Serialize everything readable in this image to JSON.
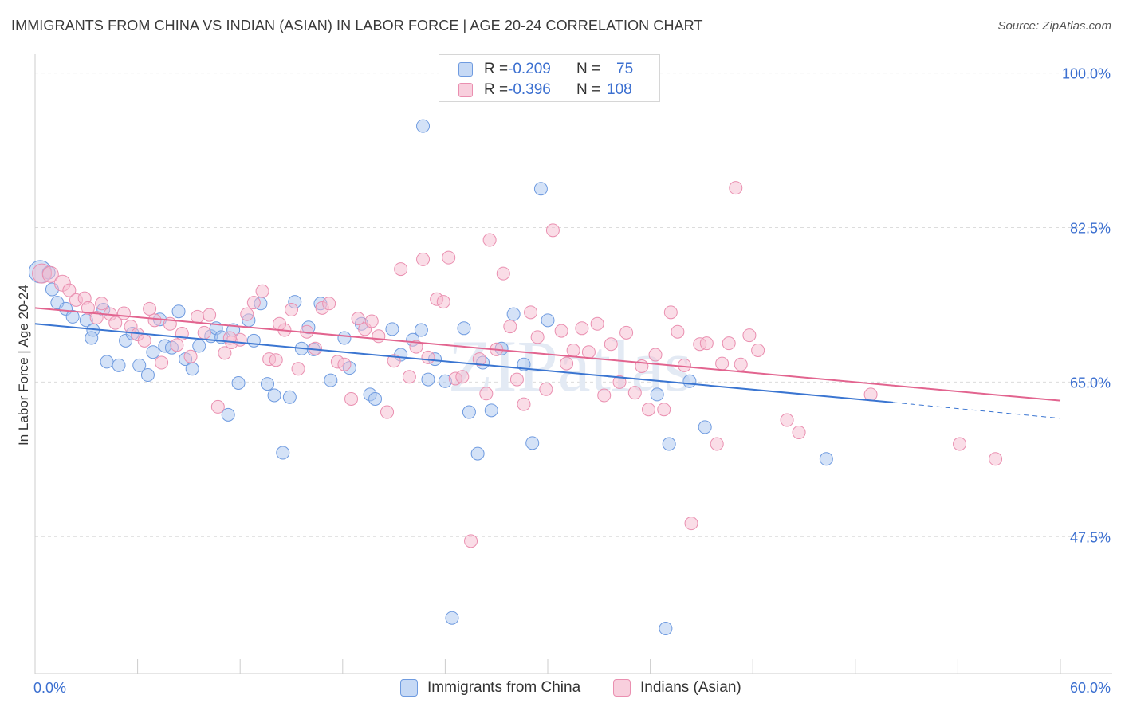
{
  "title": "IMMIGRANTS FROM CHINA VS INDIAN (ASIAN) IN LABOR FORCE | AGE 20-24 CORRELATION CHART",
  "source": "Source: ZipAtlas.com",
  "watermark": "ZIPatlas",
  "legend_stats": [
    {
      "r_label": "R =",
      "r_value": "-0.209",
      "n_label": "N =",
      "n_value": "75"
    },
    {
      "r_label": "R =",
      "r_value": "-0.396",
      "n_label": "N =",
      "n_value": "108"
    }
  ],
  "colors": {
    "china_fill": "#a9c6f0",
    "china_stroke": "#6f9be0",
    "china_line": "#3a75d1",
    "indian_fill": "#f6bcd0",
    "indian_stroke": "#ea8fb0",
    "indian_line": "#e2648f",
    "axis_text": "#3b6fd0"
  },
  "chart_data": {
    "type": "scatter",
    "title": "IMMIGRANTS FROM CHINA VS INDIAN (ASIAN) IN LABOR FORCE | AGE 20-24 CORRELATION CHART",
    "xlabel": "",
    "ylabel": "In Labor Force | Age 20-24",
    "xlim": [
      0,
      60
    ],
    "ylim": [
      32,
      101.5
    ],
    "x_tick_labels": [
      "0.0%",
      "60.0%"
    ],
    "y_ticks": [
      47.5,
      65.0,
      82.5,
      100.0
    ],
    "y_tick_labels": [
      "47.5%",
      "65.0%",
      "82.5%",
      "100.0%"
    ],
    "grid": true,
    "legend_position": "top-center",
    "series": [
      {
        "name": "Immigrants from China",
        "trend": {
          "x0": 0,
          "y0": 71.6,
          "x1": 50.2,
          "y1": 62.7,
          "dash_to_x": 60,
          "dash_to_y": 60.9
        },
        "points": [
          [
            0.3,
            77.5,
            14
          ],
          [
            0.8,
            77.4,
            8
          ],
          [
            1.0,
            75.5,
            8
          ],
          [
            1.3,
            74.0,
            8
          ],
          [
            1.8,
            73.3,
            8
          ],
          [
            2.2,
            72.4,
            8
          ],
          [
            3.0,
            72.0,
            8
          ],
          [
            3.4,
            70.9,
            8
          ],
          [
            4.0,
            73.2,
            8
          ],
          [
            3.3,
            70.0,
            8
          ],
          [
            4.2,
            67.3,
            8
          ],
          [
            4.9,
            66.9,
            8
          ],
          [
            5.3,
            69.7,
            8
          ],
          [
            5.7,
            70.5,
            8
          ],
          [
            6.1,
            66.9,
            8
          ],
          [
            6.6,
            65.8,
            8
          ],
          [
            6.9,
            68.4,
            8
          ],
          [
            7.3,
            72.1,
            8
          ],
          [
            7.6,
            69.1,
            8
          ],
          [
            8.0,
            68.9,
            8
          ],
          [
            8.4,
            73.0,
            8
          ],
          [
            8.8,
            67.6,
            8
          ],
          [
            9.2,
            66.5,
            8
          ],
          [
            9.6,
            69.1,
            8
          ],
          [
            10.3,
            70.2,
            8
          ],
          [
            10.6,
            71.1,
            8
          ],
          [
            10.9,
            70.1,
            8
          ],
          [
            11.3,
            61.3,
            8
          ],
          [
            11.6,
            70.9,
            8
          ],
          [
            11.9,
            64.9,
            8
          ],
          [
            12.5,
            72.0,
            8
          ],
          [
            12.8,
            69.7,
            8
          ],
          [
            13.2,
            73.9,
            8
          ],
          [
            13.6,
            64.8,
            8
          ],
          [
            14.0,
            63.5,
            8
          ],
          [
            14.5,
            57.0,
            8
          ],
          [
            14.9,
            63.3,
            8
          ],
          [
            15.2,
            74.1,
            8
          ],
          [
            15.6,
            68.8,
            8
          ],
          [
            16.0,
            71.2,
            8
          ],
          [
            16.3,
            68.7,
            8
          ],
          [
            16.7,
            73.9,
            8
          ],
          [
            17.3,
            65.2,
            8
          ],
          [
            18.1,
            70.0,
            8
          ],
          [
            18.4,
            66.6,
            8
          ],
          [
            19.1,
            71.6,
            8
          ],
          [
            19.6,
            63.6,
            8
          ],
          [
            19.9,
            63.1,
            8
          ],
          [
            20.9,
            71.0,
            8
          ],
          [
            21.4,
            68.1,
            8
          ],
          [
            22.1,
            69.8,
            8
          ],
          [
            22.6,
            70.9,
            8
          ],
          [
            23.0,
            65.3,
            8
          ],
          [
            23.4,
            67.6,
            8
          ],
          [
            24.0,
            65.1,
            8
          ],
          [
            24.4,
            38.3,
            8
          ],
          [
            25.1,
            71.1,
            8
          ],
          [
            25.4,
            61.6,
            8
          ],
          [
            25.9,
            56.9,
            8
          ],
          [
            26.2,
            67.2,
            8
          ],
          [
            26.7,
            61.8,
            8
          ],
          [
            27.3,
            68.8,
            8
          ],
          [
            28.0,
            72.7,
            8
          ],
          [
            28.6,
            67.0,
            8
          ],
          [
            29.1,
            58.1,
            8
          ],
          [
            29.6,
            86.9,
            8
          ],
          [
            30.0,
            72.0,
            8
          ],
          [
            32.9,
            100.0,
            8
          ],
          [
            22.7,
            94.0,
            8
          ],
          [
            36.4,
            63.6,
            8
          ],
          [
            36.9,
            37.1,
            8
          ],
          [
            37.1,
            58.0,
            8
          ],
          [
            38.3,
            65.1,
            8
          ],
          [
            39.2,
            59.9,
            8
          ],
          [
            46.3,
            56.3,
            8
          ]
        ]
      },
      {
        "name": "Indians (Asian)",
        "trend": {
          "x0": 0,
          "y0": 73.4,
          "x1": 60,
          "y1": 62.9
        },
        "points": [
          [
            0.4,
            77.3,
            12
          ],
          [
            0.9,
            77.2,
            10
          ],
          [
            1.6,
            76.2,
            10
          ],
          [
            2.0,
            75.4,
            8
          ],
          [
            2.4,
            74.3,
            8
          ],
          [
            2.9,
            74.5,
            8
          ],
          [
            3.1,
            73.4,
            8
          ],
          [
            3.6,
            72.3,
            8
          ],
          [
            3.9,
            73.9,
            8
          ],
          [
            4.4,
            72.7,
            8
          ],
          [
            4.7,
            71.7,
            8
          ],
          [
            5.2,
            72.8,
            8
          ],
          [
            5.6,
            71.3,
            8
          ],
          [
            6.0,
            70.4,
            8
          ],
          [
            6.4,
            69.7,
            8
          ],
          [
            6.7,
            73.3,
            8
          ],
          [
            7.0,
            72.0,
            8
          ],
          [
            7.4,
            67.2,
            8
          ],
          [
            7.9,
            71.6,
            8
          ],
          [
            8.3,
            69.2,
            8
          ],
          [
            8.6,
            70.5,
            8
          ],
          [
            9.1,
            67.9,
            8
          ],
          [
            9.5,
            72.4,
            8
          ],
          [
            9.9,
            70.6,
            8
          ],
          [
            10.2,
            72.6,
            8
          ],
          [
            10.7,
            62.2,
            8
          ],
          [
            11.1,
            68.3,
            8
          ],
          [
            11.5,
            69.5,
            8
          ],
          [
            12.0,
            69.8,
            8
          ],
          [
            12.4,
            72.7,
            8
          ],
          [
            12.8,
            74.0,
            8
          ],
          [
            13.3,
            75.3,
            8
          ],
          [
            13.7,
            67.6,
            8
          ],
          [
            14.1,
            67.5,
            8
          ],
          [
            14.6,
            70.9,
            8
          ],
          [
            15.0,
            73.2,
            8
          ],
          [
            15.4,
            66.5,
            8
          ],
          [
            15.9,
            70.7,
            8
          ],
          [
            16.4,
            68.8,
            8
          ],
          [
            16.8,
            73.4,
            8
          ],
          [
            17.2,
            73.9,
            8
          ],
          [
            17.7,
            67.3,
            8
          ],
          [
            18.1,
            67.0,
            8
          ],
          [
            18.5,
            63.1,
            8
          ],
          [
            18.9,
            72.2,
            8
          ],
          [
            19.3,
            71.0,
            8
          ],
          [
            19.7,
            71.9,
            8
          ],
          [
            20.1,
            70.2,
            8
          ],
          [
            20.6,
            61.6,
            8
          ],
          [
            21.0,
            67.4,
            8
          ],
          [
            21.4,
            77.8,
            8
          ],
          [
            21.9,
            65.6,
            8
          ],
          [
            22.3,
            69.0,
            8
          ],
          [
            22.7,
            78.9,
            8
          ],
          [
            23.0,
            67.8,
            8
          ],
          [
            23.5,
            74.4,
            8
          ],
          [
            23.9,
            74.1,
            8
          ],
          [
            24.2,
            79.1,
            8
          ],
          [
            24.6,
            65.4,
            8
          ],
          [
            25.0,
            65.6,
            8
          ],
          [
            25.5,
            47.0,
            8
          ],
          [
            26.0,
            67.6,
            8
          ],
          [
            26.4,
            63.7,
            8
          ],
          [
            26.6,
            81.1,
            8
          ],
          [
            27.0,
            68.7,
            8
          ],
          [
            27.4,
            77.3,
            8
          ],
          [
            27.8,
            71.3,
            8
          ],
          [
            28.2,
            65.3,
            8
          ],
          [
            28.6,
            62.5,
            8
          ],
          [
            29.0,
            72.9,
            8
          ],
          [
            29.4,
            70.1,
            8
          ],
          [
            29.9,
            64.2,
            8
          ],
          [
            30.3,
            82.2,
            8
          ],
          [
            30.8,
            70.8,
            8
          ],
          [
            31.1,
            67.1,
            8
          ],
          [
            31.5,
            68.6,
            8
          ],
          [
            32.0,
            71.1,
            8
          ],
          [
            32.4,
            68.4,
            8
          ],
          [
            32.9,
            71.6,
            8
          ],
          [
            33.3,
            63.5,
            8
          ],
          [
            33.7,
            69.3,
            8
          ],
          [
            34.2,
            65.0,
            8
          ],
          [
            34.6,
            70.6,
            8
          ],
          [
            35.1,
            63.8,
            8
          ],
          [
            35.5,
            66.8,
            8
          ],
          [
            35.9,
            61.9,
            8
          ],
          [
            36.3,
            68.1,
            8
          ],
          [
            36.8,
            61.9,
            8
          ],
          [
            37.2,
            72.9,
            8
          ],
          [
            37.6,
            70.7,
            8
          ],
          [
            38.0,
            66.9,
            8
          ],
          [
            38.4,
            49.0,
            8
          ],
          [
            38.9,
            69.3,
            8
          ],
          [
            39.3,
            69.4,
            8
          ],
          [
            39.9,
            58.0,
            8
          ],
          [
            40.2,
            67.1,
            8
          ],
          [
            40.6,
            69.4,
            8
          ],
          [
            41.0,
            87.0,
            8
          ],
          [
            41.3,
            67.0,
            8
          ],
          [
            41.8,
            70.3,
            8
          ],
          [
            42.3,
            68.6,
            8
          ],
          [
            44.0,
            60.7,
            8
          ],
          [
            44.7,
            59.3,
            8
          ],
          [
            48.9,
            63.6,
            8
          ],
          [
            54.1,
            58.0,
            8
          ],
          [
            56.2,
            56.3,
            8
          ],
          [
            11.4,
            70.0,
            8
          ],
          [
            14.3,
            71.6,
            8
          ]
        ]
      }
    ]
  },
  "bottom_legend": [
    {
      "label": "Immigrants from China"
    },
    {
      "label": "Indians (Asian)"
    }
  ]
}
